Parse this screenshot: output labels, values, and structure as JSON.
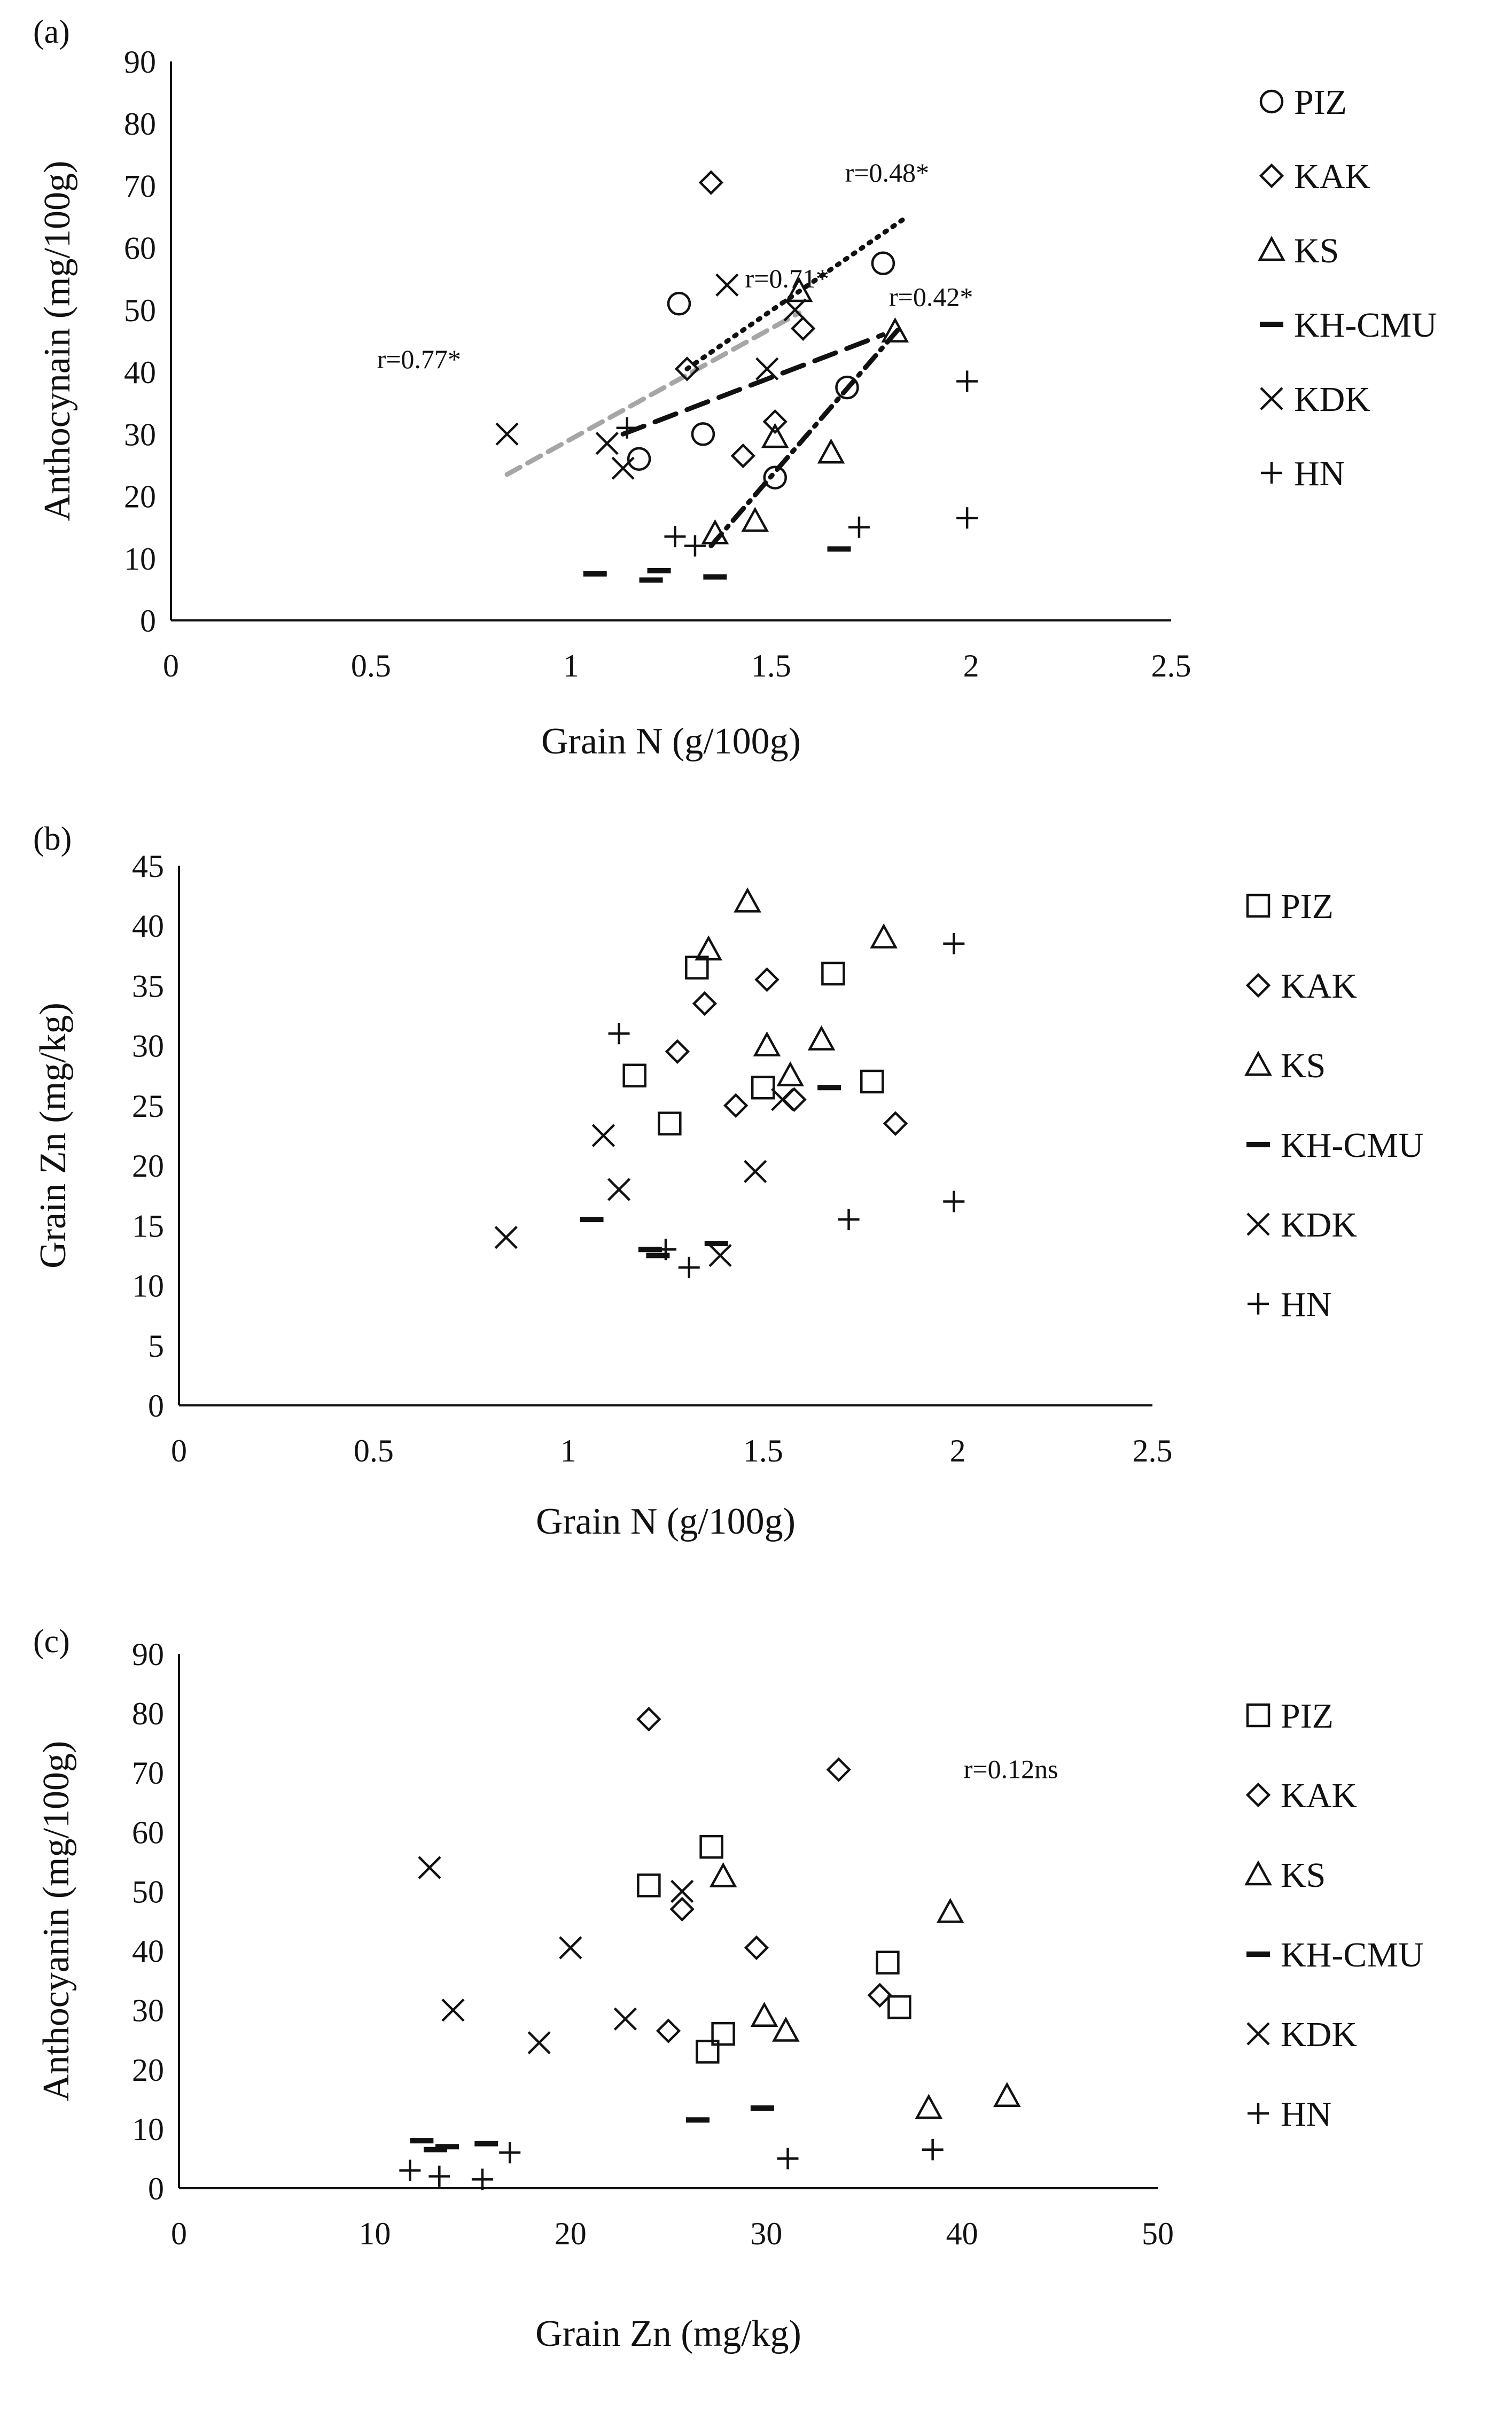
{
  "chart_data": [
    {
      "id": "a",
      "type": "scatter",
      "panel_label": "(a)",
      "xlabel": "Grain N (g/100g)",
      "ylabel": "Anthocynain (mg/100g)",
      "xlim": [
        0,
        2.5
      ],
      "ylim": [
        0,
        90
      ],
      "x_ticks": [
        "0",
        "0.5",
        "1",
        "1.5",
        "2",
        "2.5"
      ],
      "y_ticks": [
        "0",
        "10",
        "20",
        "30",
        "40",
        "50",
        "60",
        "70",
        "80",
        "90"
      ],
      "grid": false,
      "legend_placement": "right",
      "series": [
        {
          "name": "PIZ",
          "marker": "circle",
          "points": [
            [
              1.17,
              26
            ],
            [
              1.27,
              51
            ],
            [
              1.33,
              30
            ],
            [
              1.51,
              23
            ],
            [
              1.69,
              37.5
            ],
            [
              1.78,
              57.5
            ]
          ]
        },
        {
          "name": "KAK",
          "marker": "diamond",
          "points": [
            [
              1.29,
              40.5
            ],
            [
              1.35,
              70.5
            ],
            [
              1.43,
              26.5
            ],
            [
              1.51,
              32
            ],
            [
              1.58,
              47
            ]
          ]
        },
        {
          "name": "KS",
          "marker": "triangle",
          "points": [
            [
              1.36,
              14
            ],
            [
              1.46,
              16
            ],
            [
              1.51,
              29.5
            ],
            [
              1.57,
              53
            ],
            [
              1.65,
              27
            ],
            [
              1.81,
              46.5
            ]
          ]
        },
        {
          "name": "KH-CMU",
          "marker": "dash",
          "points": [
            [
              1.06,
              7.5
            ],
            [
              1.2,
              6.5
            ],
            [
              1.22,
              8
            ],
            [
              1.36,
              7
            ],
            [
              1.67,
              11.5
            ]
          ]
        },
        {
          "name": "KDK",
          "marker": "x",
          "points": [
            [
              0.84,
              30
            ],
            [
              1.09,
              28.5
            ],
            [
              1.13,
              24.5
            ],
            [
              1.39,
              54
            ],
            [
              1.49,
              40.5
            ],
            [
              1.56,
              50
            ]
          ]
        },
        {
          "name": "HN",
          "marker": "plus",
          "points": [
            [
              1.14,
              31
            ],
            [
              1.26,
              13.5
            ],
            [
              1.31,
              12
            ],
            [
              1.72,
              15
            ],
            [
              1.99,
              38.5
            ],
            [
              1.99,
              16.5
            ]
          ]
        }
      ],
      "trendlines": [
        {
          "style": "dotted",
          "color": "#111111",
          "points": [
            [
              1.29,
              40.5
            ],
            [
              1.84,
              65
            ]
          ],
          "label": "r=0.48*"
        },
        {
          "style": "long-dash",
          "color": "#111111",
          "points": [
            [
              1.13,
              30
            ],
            [
              1.78,
              46
            ]
          ],
          "label": "r=0.42*"
        },
        {
          "style": "dash-dot",
          "color": "#111111",
          "points": [
            [
              1.35,
              12
            ],
            [
              1.82,
              47
            ]
          ],
          "label": "r=0.71*"
        },
        {
          "style": "dashed",
          "color": "#a6a6a6",
          "points": [
            [
              0.84,
              23.5
            ],
            [
              1.57,
              49.5
            ]
          ],
          "label": "r=0.77*"
        }
      ],
      "annotations": [
        {
          "text": "r=0.48*",
          "x": 1.79,
          "y": 72
        },
        {
          "text": "r=0.71*",
          "x": 1.54,
          "y": 55
        },
        {
          "text": "r=0.42*",
          "x": 1.9,
          "y": 52
        },
        {
          "text": "r=0.77*",
          "x": 0.62,
          "y": 42
        }
      ]
    },
    {
      "id": "b",
      "type": "scatter",
      "panel_label": "(b)",
      "xlabel": "Grain N (g/100g)",
      "ylabel": "Grain Zn (mg/kg)",
      "xlim": [
        0,
        2.5
      ],
      "ylim": [
        0,
        45
      ],
      "x_ticks": [
        "0",
        "0.5",
        "1",
        "1.5",
        "2",
        "2.5"
      ],
      "y_ticks": [
        "0",
        "5",
        "10",
        "15",
        "20",
        "25",
        "30",
        "35",
        "40",
        "45"
      ],
      "grid": false,
      "legend_placement": "right",
      "series": [
        {
          "name": "PIZ",
          "marker": "square",
          "points": [
            [
              1.17,
              27.5
            ],
            [
              1.26,
              23.5
            ],
            [
              1.33,
              36.5
            ],
            [
              1.5,
              26.5
            ],
            [
              1.68,
              36
            ],
            [
              1.78,
              27
            ]
          ]
        },
        {
          "name": "KAK",
          "marker": "diamond",
          "points": [
            [
              1.28,
              29.5
            ],
            [
              1.35,
              33.5
            ],
            [
              1.43,
              25
            ],
            [
              1.51,
              35.5
            ],
            [
              1.58,
              25.5
            ],
            [
              1.84,
              23.5
            ]
          ]
        },
        {
          "name": "KS",
          "marker": "triangle",
          "points": [
            [
              1.36,
              38
            ],
            [
              1.46,
              42
            ],
            [
              1.51,
              30
            ],
            [
              1.57,
              27.5
            ],
            [
              1.65,
              30.5
            ],
            [
              1.81,
              39
            ]
          ]
        },
        {
          "name": "KH-CMU",
          "marker": "dash",
          "points": [
            [
              1.06,
              15.5
            ],
            [
              1.21,
              13
            ],
            [
              1.23,
              12.5
            ],
            [
              1.38,
              13.5
            ],
            [
              1.67,
              26.5
            ]
          ]
        },
        {
          "name": "KDK",
          "marker": "x",
          "points": [
            [
              0.84,
              14
            ],
            [
              1.09,
              22.5
            ],
            [
              1.13,
              18
            ],
            [
              1.39,
              12.5
            ],
            [
              1.48,
              19.5
            ],
            [
              1.55,
              25.5
            ]
          ]
        },
        {
          "name": "HN",
          "marker": "plus",
          "points": [
            [
              1.13,
              31
            ],
            [
              1.25,
              13
            ],
            [
              1.31,
              11.5
            ],
            [
              1.72,
              15.5
            ],
            [
              1.99,
              38.5
            ],
            [
              1.99,
              17
            ]
          ]
        }
      ]
    },
    {
      "id": "c",
      "type": "scatter",
      "panel_label": "(c)",
      "xlabel": "Grain Zn (mg/kg)",
      "ylabel": "Anthocyanin (mg/100g)",
      "xlim": [
        0,
        50
      ],
      "ylim": [
        0,
        90
      ],
      "x_ticks": [
        "0",
        "10",
        "20",
        "30",
        "40",
        "50"
      ],
      "y_ticks": [
        "0",
        "10",
        "20",
        "30",
        "40",
        "50",
        "60",
        "70",
        "80",
        "90"
      ],
      "grid": false,
      "legend_placement": "right",
      "series": [
        {
          "name": "PIZ",
          "marker": "square",
          "points": [
            [
              24,
              51
            ],
            [
              27.2,
              57.5
            ],
            [
              27,
              23
            ],
            [
              27.8,
              26
            ],
            [
              36.2,
              38
            ],
            [
              36.8,
              30.5
            ]
          ]
        },
        {
          "name": "KAK",
          "marker": "diamond",
          "points": [
            [
              24,
              79
            ],
            [
              25,
              26.5
            ],
            [
              25.7,
              47
            ],
            [
              29.5,
              40.5
            ],
            [
              33.7,
              70.5
            ],
            [
              35.8,
              32.5
            ]
          ]
        },
        {
          "name": "KS",
          "marker": "triangle",
          "points": [
            [
              27.8,
              52.5
            ],
            [
              29.9,
              29
            ],
            [
              31,
              26.5
            ],
            [
              38.3,
              13.5
            ],
            [
              39.4,
              46.5
            ],
            [
              42.3,
              15.5
            ]
          ]
        },
        {
          "name": "KH-CMU",
          "marker": "dash",
          "points": [
            [
              12.4,
              8
            ],
            [
              13.1,
              6.5
            ],
            [
              13.7,
              7
            ],
            [
              15.7,
              7.5
            ],
            [
              26.5,
              11.5
            ],
            [
              29.8,
              13.5
            ]
          ]
        },
        {
          "name": "KDK",
          "marker": "x",
          "points": [
            [
              12.8,
              54
            ],
            [
              14,
              30
            ],
            [
              18.4,
              24.5
            ],
            [
              20,
              40.5
            ],
            [
              22.8,
              28.5
            ],
            [
              25.7,
              50
            ]
          ]
        },
        {
          "name": "HN",
          "marker": "plus",
          "points": [
            [
              11.8,
              3
            ],
            [
              13.3,
              2
            ],
            [
              15.5,
              1.5
            ],
            [
              16.9,
              6
            ],
            [
              31.1,
              5
            ],
            [
              38.5,
              6.5
            ]
          ]
        }
      ],
      "annotations": [
        {
          "text": "r=0.12ns",
          "x": 42.5,
          "y": 70.5
        }
      ]
    }
  ]
}
